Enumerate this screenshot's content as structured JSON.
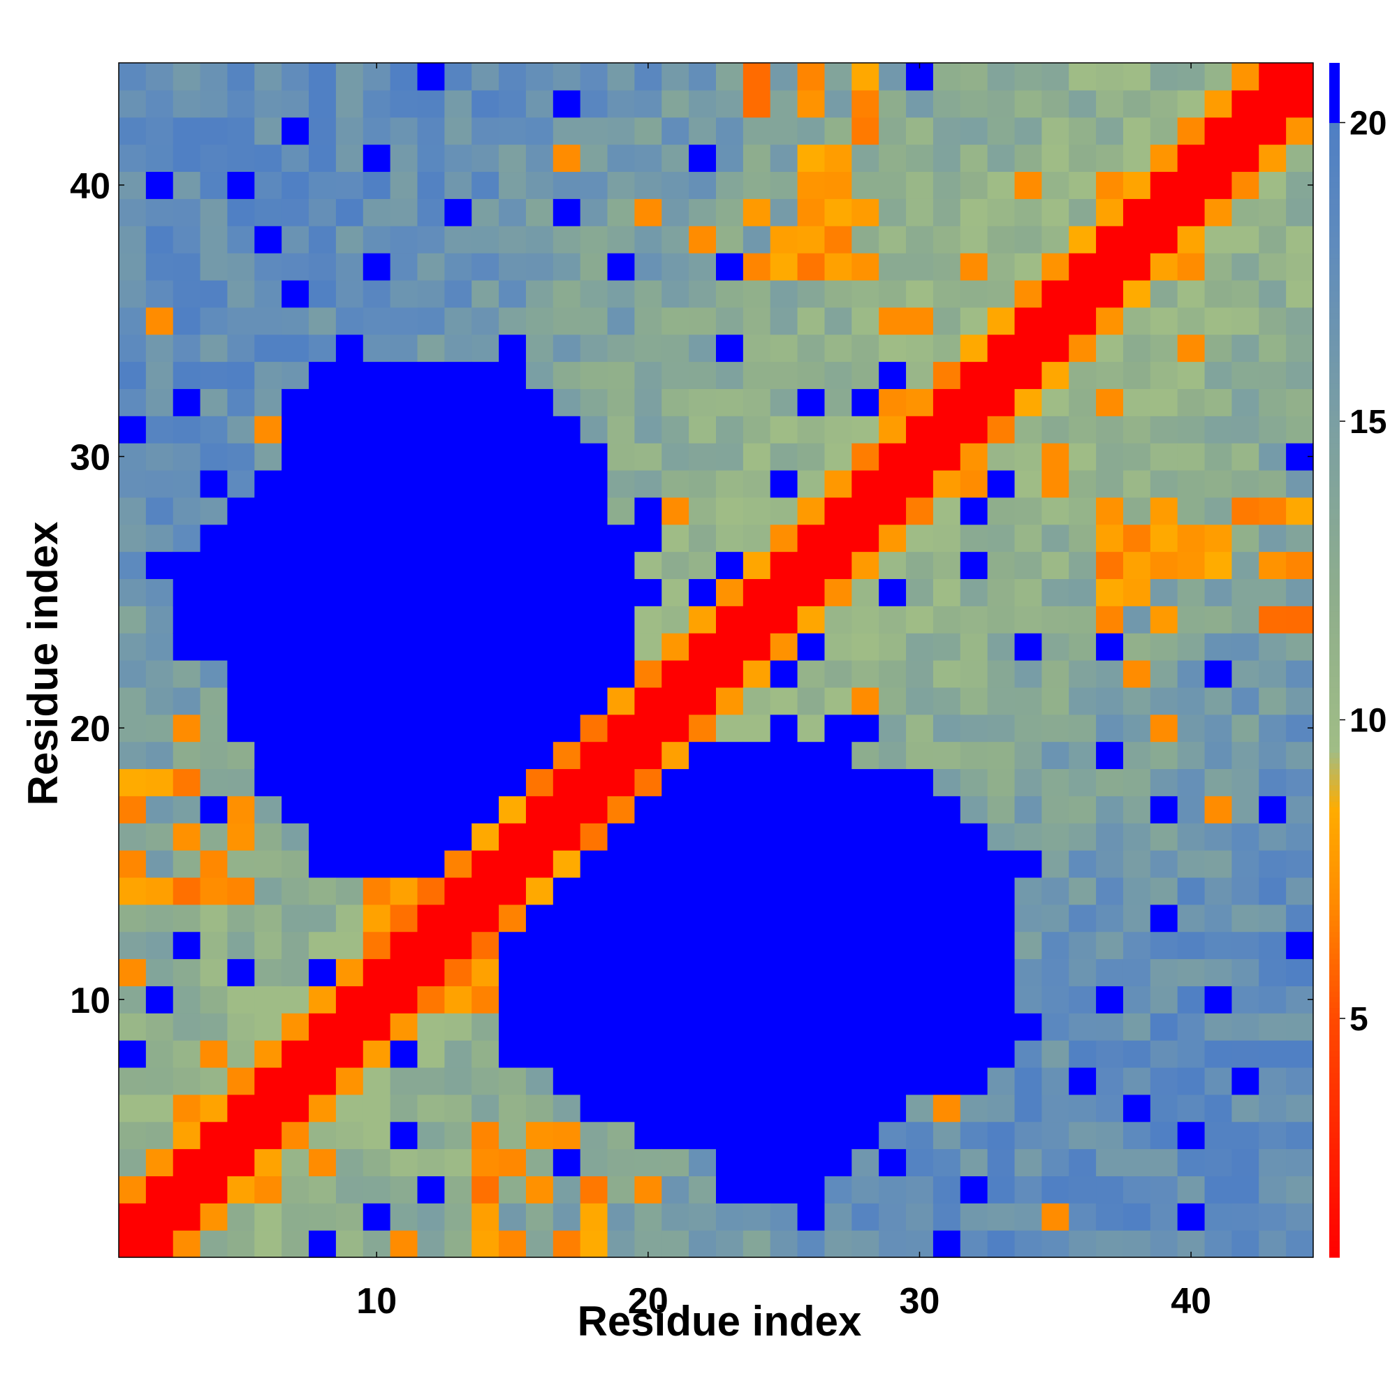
{
  "chart_data": {
    "type": "heatmap",
    "title": "",
    "xlabel": "Residue index",
    "ylabel": "Residue index",
    "n_residues": 44,
    "xlim": [
      0.5,
      44.5
    ],
    "ylim": [
      0.5,
      44.5
    ],
    "x_ticks": [
      10,
      20,
      30,
      40
    ],
    "y_ticks": [
      10,
      20,
      30,
      40
    ],
    "colorbar": {
      "ticks": [
        5,
        10,
        15,
        20
      ],
      "range": [
        1,
        21
      ],
      "stops": [
        {
          "value": 1,
          "color": "#ff0000"
        },
        {
          "value": 5,
          "color": "#ff4a00"
        },
        {
          "value": 7,
          "color": "#ff8c00"
        },
        {
          "value": 8.5,
          "color": "#ffac00"
        },
        {
          "value": 9.5,
          "color": "#a0bd86"
        },
        {
          "value": 12,
          "color": "#8fae8c"
        },
        {
          "value": 15,
          "color": "#7b9fa3"
        },
        {
          "value": 18,
          "color": "#5f8bbd"
        },
        {
          "value": 20,
          "color": "#4f7fc4"
        },
        {
          "value": 20.01,
          "color": "#0000ff"
        },
        {
          "value": 21,
          "color": "#0000ff"
        }
      ]
    },
    "grid": false,
    "description_of_values": "Pairwise residue distance map (symmetric); value per cell estimated from colour.",
    "features": {
      "diagonal_band": {
        "halfwidth_red": 1,
        "halfwidth_orange": 2
      },
      "blue_blocks": [
        {
          "x": [
            13,
            35
          ],
          "y": [
            4,
            20
          ]
        },
        {
          "x": [
            4,
            20
          ],
          "y": [
            13,
            35
          ]
        },
        {
          "x": [
            23,
            27
          ],
          "y": [
            2,
            9
          ]
        },
        {
          "x": [
            2,
            9
          ],
          "y": [
            23,
            27
          ]
        }
      ],
      "orange_clusters": [
        {
          "x": [
            24,
            28
          ],
          "y": [
            37,
            44
          ]
        },
        {
          "x": [
            38,
            43
          ],
          "y": [
            22,
            28
          ]
        },
        {
          "x": [
            10,
            18
          ],
          "y": [
            8,
            18
          ]
        },
        {
          "x": [
            1,
            5
          ],
          "y": [
            14,
            18
          ]
        }
      ]
    }
  }
}
